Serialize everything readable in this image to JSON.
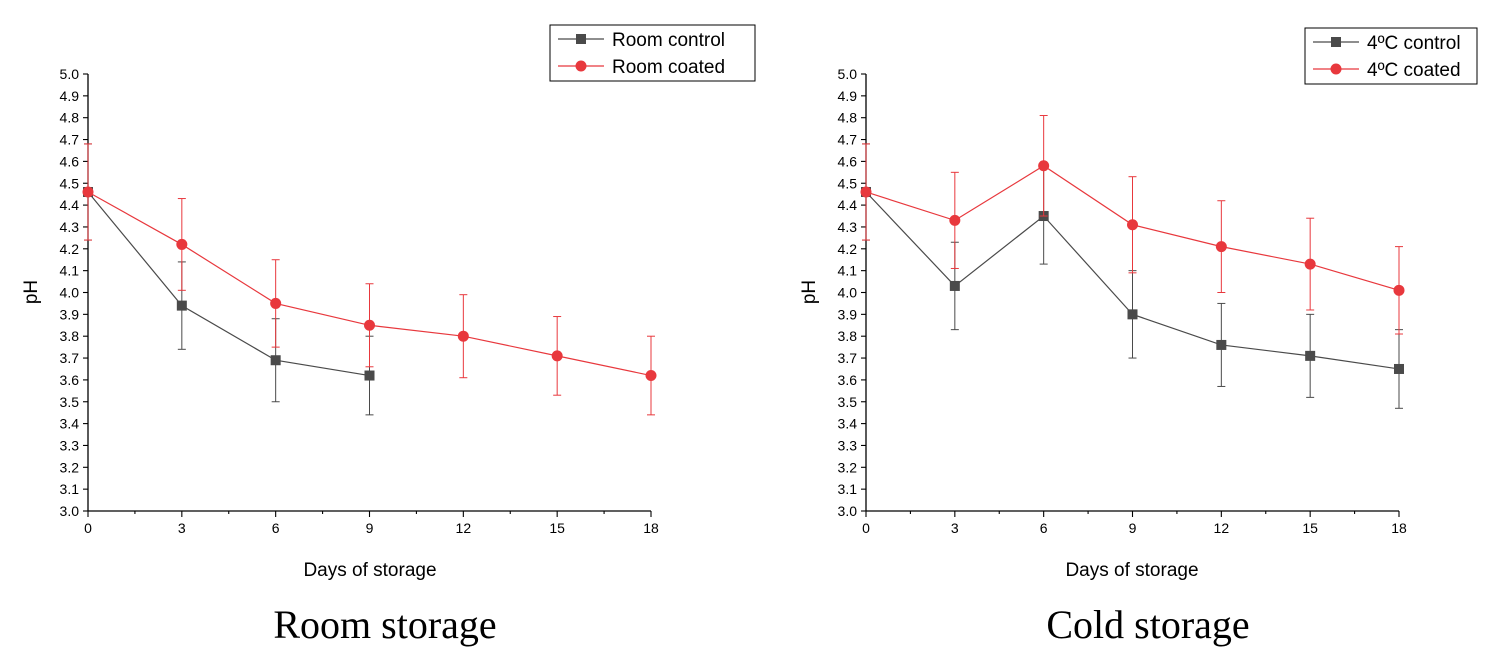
{
  "chart_data": [
    {
      "type": "line",
      "caption": "Room storage",
      "xlabel": "Days of storage",
      "ylabel": "pH",
      "xlim": [
        0,
        18
      ],
      "ylim": [
        3.0,
        5.0
      ],
      "x_ticks": [
        0,
        3,
        6,
        9,
        12,
        15,
        18
      ],
      "y_ticks": [
        "3.0",
        "3.1",
        "3.2",
        "3.3",
        "3.4",
        "3.5",
        "3.6",
        "3.7",
        "3.8",
        "3.9",
        "4.0",
        "4.1",
        "4.2",
        "4.3",
        "4.4",
        "4.5",
        "4.6",
        "4.7",
        "4.8",
        "4.9",
        "5.0"
      ],
      "legend_position": "top-right",
      "series": [
        {
          "name": "Room control",
          "color": "#4a4a4a",
          "marker": "square",
          "x": [
            0,
            3,
            6,
            9
          ],
          "values": [
            4.46,
            3.94,
            3.69,
            3.62
          ],
          "errors": [
            0.22,
            0.2,
            0.19,
            0.18
          ]
        },
        {
          "name": "Room coated",
          "color": "#e8383d",
          "marker": "circle",
          "x": [
            0,
            3,
            6,
            9,
            12,
            15,
            18
          ],
          "values": [
            4.46,
            4.22,
            3.95,
            3.85,
            3.8,
            3.71,
            3.62
          ],
          "errors": [
            0.22,
            0.21,
            0.2,
            0.19,
            0.19,
            0.18,
            0.18
          ]
        }
      ]
    },
    {
      "type": "line",
      "caption": "Cold storage",
      "xlabel": "Days of storage",
      "ylabel": "pH",
      "xlim": [
        0,
        18
      ],
      "ylim": [
        3.0,
        5.0
      ],
      "x_ticks": [
        0,
        3,
        6,
        9,
        12,
        15,
        18
      ],
      "y_ticks": [
        "3.0",
        "3.1",
        "3.2",
        "3.3",
        "3.4",
        "3.5",
        "3.6",
        "3.7",
        "3.8",
        "3.9",
        "4.0",
        "4.1",
        "4.2",
        "4.3",
        "4.4",
        "4.5",
        "4.6",
        "4.7",
        "4.8",
        "4.9",
        "5.0"
      ],
      "legend_position": "top-right",
      "series": [
        {
          "name": "4ºC control",
          "color": "#4a4a4a",
          "marker": "square",
          "x": [
            0,
            3,
            6,
            9,
            12,
            15,
            18
          ],
          "values": [
            4.46,
            4.03,
            4.35,
            3.9,
            3.76,
            3.71,
            3.65
          ],
          "errors": [
            0.22,
            0.2,
            0.22,
            0.2,
            0.19,
            0.19,
            0.18
          ]
        },
        {
          "name": "4ºC coated",
          "color": "#e8383d",
          "marker": "circle",
          "x": [
            0,
            3,
            6,
            9,
            12,
            15,
            18
          ],
          "values": [
            4.46,
            4.33,
            4.58,
            4.31,
            4.21,
            4.13,
            4.01
          ],
          "errors": [
            0.22,
            0.22,
            0.23,
            0.22,
            0.21,
            0.21,
            0.2
          ]
        }
      ]
    }
  ]
}
